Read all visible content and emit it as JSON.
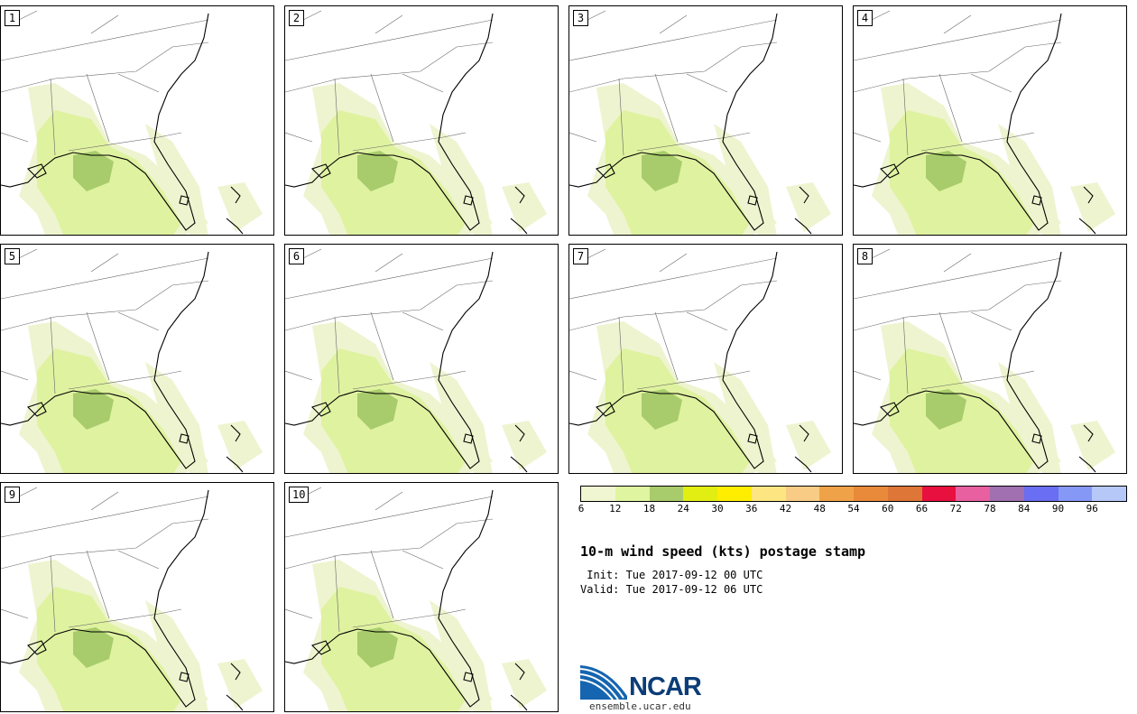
{
  "panels": [
    {
      "label": "1"
    },
    {
      "label": "2"
    },
    {
      "label": "3"
    },
    {
      "label": "4"
    },
    {
      "label": "5"
    },
    {
      "label": "6"
    },
    {
      "label": "7"
    },
    {
      "label": "8"
    },
    {
      "label": "9"
    },
    {
      "label": "10"
    }
  ],
  "colorbar": {
    "colors": [
      "#f0f5d2",
      "#dff5a0",
      "#a8cc6b",
      "#e2ee12",
      "#ffee00",
      "#fde681",
      "#f8cc85",
      "#f0a248",
      "#e88a3a",
      "#dd7636",
      "#e8103e",
      "#e860a0",
      "#a070b0",
      "#6a6ef2",
      "#8698f5",
      "#b6c8f8"
    ],
    "ticks": [
      "6",
      "12",
      "18",
      "24",
      "30",
      "36",
      "42",
      "48",
      "54",
      "60",
      "66",
      "72",
      "78",
      "84",
      "90",
      "96"
    ]
  },
  "title": "10-m wind speed (kts) postage stamp",
  "init": " Init: Tue 2017-09-12 00 UTC",
  "valid": "Valid: Tue 2017-09-12 06 UTC",
  "logo": {
    "name": "NCAR",
    "url": "ensemble.ucar.edu"
  }
}
